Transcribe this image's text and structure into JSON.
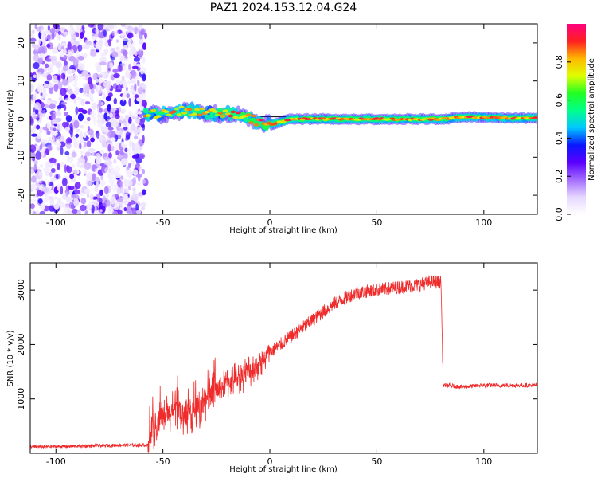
{
  "title": "PAZ1.2024.153.12.04.G24",
  "colors": {
    "snr_line": "#ef2b2b",
    "ridge_black": "#000000",
    "colormap": [
      "#ffffff",
      "#e6d7ff",
      "#a36bff",
      "#5a00ff",
      "#0a18ff",
      "#00c8ff",
      "#00ff8a",
      "#22ff22",
      "#e0ff00",
      "#ffb800",
      "#ff2020",
      "#ff007f"
    ]
  },
  "chart_data": [
    {
      "type": "heatmap",
      "title": "PAZ1.2024.153.12.04.G24",
      "xlabel": "Height of straight line (km)",
      "ylabel": "Frequency (Hz)",
      "xlim": [
        -112,
        125
      ],
      "ylim": [
        -25,
        25
      ],
      "xticks": [
        -100,
        -50,
        0,
        50,
        100
      ],
      "yticks": [
        -20,
        -10,
        0,
        10,
        20
      ],
      "colorbar": {
        "label": "Normalized spectral amplitude",
        "range": [
          0,
          1
        ],
        "ticks": [
          0.0,
          0.2,
          0.4,
          0.6,
          0.8
        ]
      },
      "regions": [
        {
          "x_range": [
            -112,
            -58
          ],
          "description_values": {
            "mean_amplitude": 0.12,
            "peak_amplitude": 0.3
          }
        },
        {
          "x_range": [
            -58,
            125
          ],
          "ridge_frequency_hz": 0,
          "peak_amplitude": 1.0
        }
      ],
      "ridge": {
        "x": [
          -58,
          -50,
          -40,
          -30,
          -20,
          -10,
          -5,
          0,
          10,
          20,
          30,
          40,
          50,
          60,
          70,
          80,
          90,
          100,
          110,
          125
        ],
        "y": [
          1.5,
          1.2,
          2.5,
          1.5,
          1.5,
          0.5,
          -1.0,
          -1.5,
          0,
          0,
          0,
          0,
          0,
          0,
          0,
          0,
          0.5,
          0.5,
          0.3,
          0.3
        ]
      }
    },
    {
      "type": "line",
      "xlabel": "Height of straight line (km)",
      "ylabel": "SNR (10 * v/v)",
      "xlim": [
        -112,
        125
      ],
      "ylim": [
        0,
        3500
      ],
      "xticks": [
        -100,
        -50,
        0,
        50,
        100
      ],
      "yticks": [
        1000,
        2000,
        3000
      ],
      "series": [
        {
          "x": [
            -112,
            -90,
            -70,
            -57,
            -55,
            -50,
            -45,
            -40,
            -35,
            -30,
            -25,
            -20,
            -15,
            -10,
            -5,
            0,
            5,
            10,
            15,
            20,
            25,
            30,
            35,
            40,
            50,
            60,
            70,
            75,
            80,
            81,
            82,
            90,
            100,
            110,
            125
          ],
          "y": [
            120,
            130,
            150,
            150,
            400,
            650,
            750,
            720,
            700,
            950,
            1150,
            1300,
            1400,
            1500,
            1650,
            1850,
            2000,
            2150,
            2300,
            2450,
            2600,
            2750,
            2850,
            2950,
            3000,
            3050,
            3100,
            3150,
            3150,
            1250,
            1250,
            1220,
            1250,
            1250,
            1250
          ]
        }
      ]
    }
  ]
}
